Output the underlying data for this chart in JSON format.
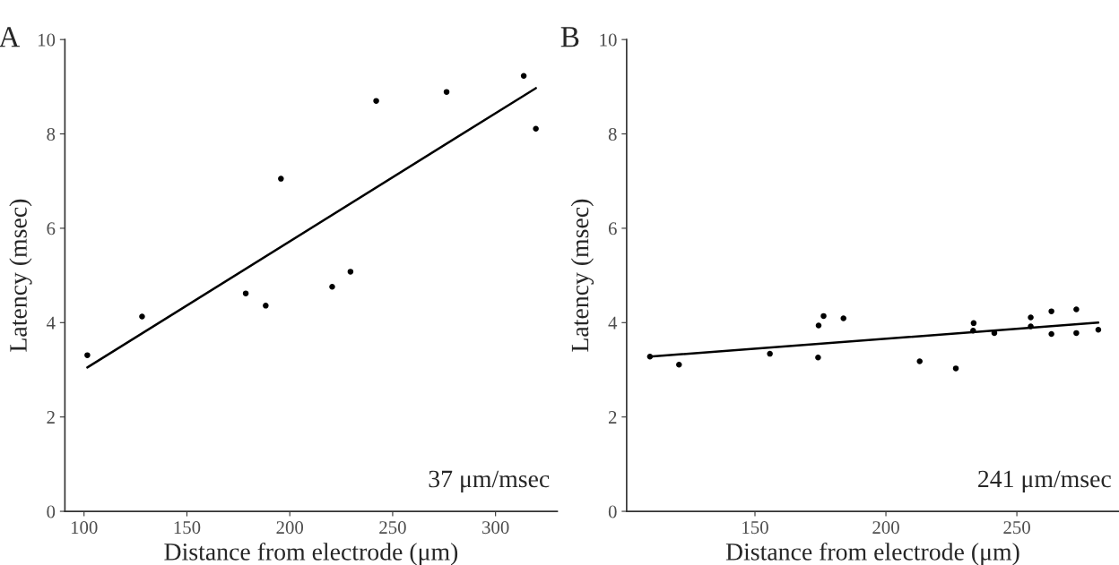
{
  "chart_data": [
    {
      "type": "scatter",
      "title": "A",
      "xlabel": "Distance from electrode (μm)",
      "ylabel": "Latency (msec)",
      "annotations": [
        "37 μm/msec"
      ],
      "xlim": [
        90.7,
        330
      ],
      "ylim": [
        0,
        10
      ],
      "xticks": [
        100,
        150,
        200,
        250,
        300
      ],
      "yticks": [
        0,
        2,
        4,
        6,
        8,
        10
      ],
      "grid": false,
      "legend": false,
      "series": [
        {
          "marker": "circle",
          "color": "#000000",
          "x": [
            101.6,
            128.2,
            178.6,
            188.3,
            195.7,
            220.6,
            229.5,
            242.0,
            276.2,
            313.7,
            319.6
          ],
          "values": [
            3.31,
            4.13,
            4.62,
            4.36,
            7.05,
            4.76,
            5.08,
            8.7,
            8.89,
            9.23,
            8.11
          ]
        },
        {
          "type": "line",
          "color": "#000000",
          "line_style": "solid",
          "x": [
            101.6,
            319.6
          ],
          "values": [
            3.05,
            8.97
          ]
        }
      ]
    },
    {
      "type": "scatter",
      "title": "B",
      "xlabel": "Distance from electrode (μm)",
      "ylabel": "Latency (msec)",
      "annotations": [
        "241 μm/msec"
      ],
      "xlim": [
        101,
        289
      ],
      "ylim": [
        0,
        10
      ],
      "xticks": [
        150,
        200,
        250
      ],
      "yticks": [
        0,
        2,
        4,
        6,
        8,
        10
      ],
      "grid": false,
      "legend": false,
      "series": [
        {
          "marker": "circle",
          "color": "#000000",
          "x": [
            109.9,
            121,
            155.7,
            174.1,
            174.3,
            176.2,
            183.8,
            212.9,
            226.7,
            233.5,
            233.3,
            241.4,
            255.3,
            255.3,
            263.2,
            263.2,
            272.7,
            272.7,
            281.1
          ],
          "values": [
            3.28,
            3.11,
            3.34,
            3.26,
            3.94,
            4.14,
            4.09,
            3.18,
            3.03,
            3.99,
            3.83,
            3.78,
            4.11,
            3.92,
            4.24,
            3.76,
            4.28,
            3.78,
            3.85
          ]
        },
        {
          "type": "line",
          "color": "#000000",
          "line_style": "solid",
          "x": [
            109.9,
            281.1
          ],
          "values": [
            3.28,
            4.0
          ]
        }
      ]
    }
  ]
}
